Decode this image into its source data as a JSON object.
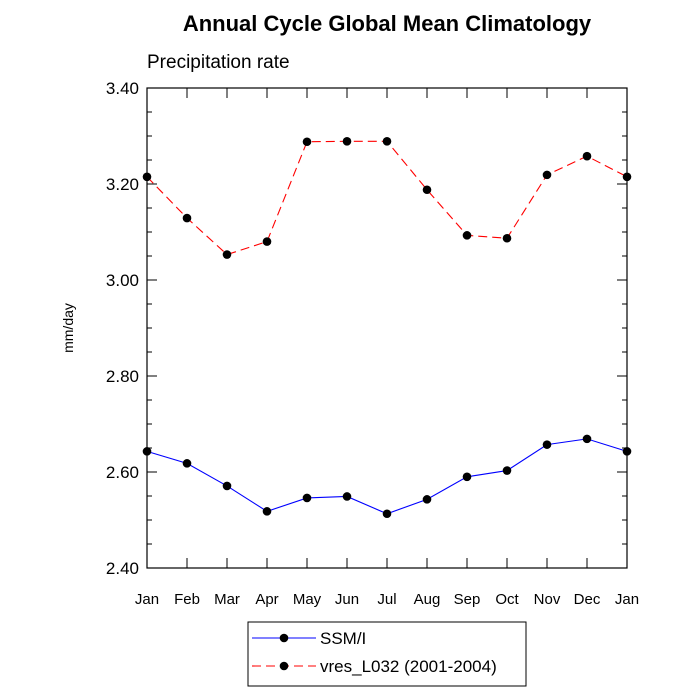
{
  "chart_data": {
    "type": "line",
    "title": "Annual Cycle Global Mean Climatology",
    "subtitle": "Precipitation rate",
    "ylabel": "mm/day",
    "xlabel": "",
    "categories": [
      "Jan",
      "Feb",
      "Mar",
      "Apr",
      "May",
      "Jun",
      "Jul",
      "Aug",
      "Sep",
      "Oct",
      "Nov",
      "Dec",
      "Jan"
    ],
    "ylim": [
      2.4,
      3.4
    ],
    "yticks": [
      "2.40",
      "2.60",
      "2.80",
      "3.00",
      "3.20",
      "3.40"
    ],
    "y_minor_step": 0.05,
    "grid": false,
    "legend_position": "bottom-center",
    "series": [
      {
        "name": "SSM/I",
        "color": "#0000ff",
        "dash": "solid",
        "marker": "filled-circle",
        "values": [
          2.643,
          2.618,
          2.571,
          2.518,
          2.546,
          2.549,
          2.513,
          2.543,
          2.59,
          2.603,
          2.657,
          2.669,
          2.643
        ]
      },
      {
        "name": "vres_L032 (2001-2004)",
        "color": "#ff0000",
        "dash": "dashed",
        "marker": "filled-circle",
        "values": [
          3.215,
          3.129,
          3.053,
          3.08,
          3.288,
          3.289,
          3.289,
          3.188,
          3.093,
          3.087,
          3.219,
          3.258,
          3.215
        ]
      }
    ]
  }
}
